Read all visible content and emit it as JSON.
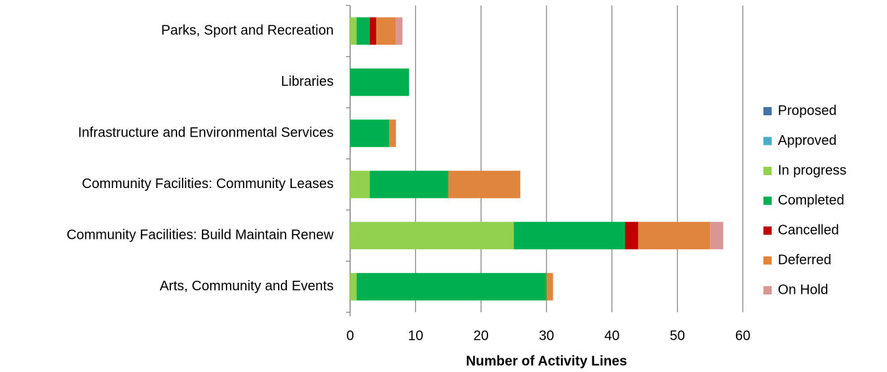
{
  "chart_data": {
    "type": "bar",
    "orientation": "horizontal",
    "stacked": true,
    "xlabel": "Number of Activity Lines",
    "categories": [
      "Parks, Sport and Recreation",
      "Libraries",
      "Infrastructure and Environmental Services",
      "Community Facilities: Community Leases",
      "Community Facilities: Build Maintain Renew",
      "Arts, Community and Events"
    ],
    "series": [
      {
        "name": "Proposed",
        "color": "#4572a7",
        "values": [
          0,
          0,
          0,
          0,
          0,
          0
        ]
      },
      {
        "name": "Approved",
        "color": "#4bacc6",
        "values": [
          0,
          0,
          0,
          0,
          0,
          0
        ]
      },
      {
        "name": "In progress",
        "color": "#92d050",
        "values": [
          1,
          0,
          0,
          3,
          25,
          1
        ]
      },
      {
        "name": "Completed",
        "color": "#00b050",
        "values": [
          2,
          9,
          6,
          12,
          17,
          29
        ]
      },
      {
        "name": "Cancelled",
        "color": "#c00000",
        "values": [
          1,
          0,
          0,
          0,
          2,
          0
        ]
      },
      {
        "name": "Deferred",
        "color": "#e0853d",
        "values": [
          3,
          0,
          1,
          11,
          11,
          1
        ]
      },
      {
        "name": "On Hold",
        "color": "#d99694",
        "values": [
          1,
          0,
          0,
          0,
          2,
          0
        ]
      }
    ],
    "xlim": [
      0,
      60
    ],
    "xticks": [
      0,
      10,
      20,
      30,
      40,
      50,
      60
    ],
    "grid": true,
    "legend": "right"
  }
}
